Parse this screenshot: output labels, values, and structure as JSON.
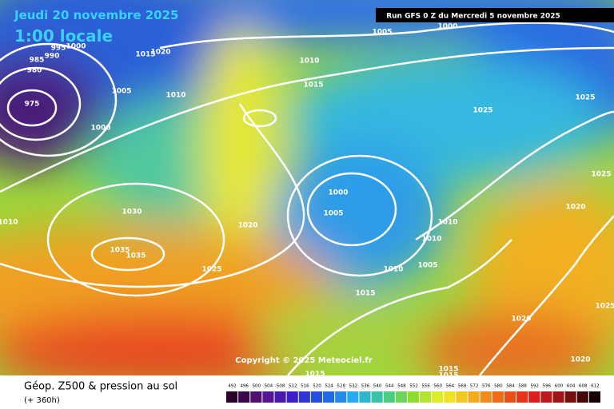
{
  "header": {
    "date": "Jeudi 20 novembre 2025",
    "time": "1:00 locale",
    "run": "Run GFS 0 Z du Mercredi 5 novembre 2025"
  },
  "isobars": {
    "labels": [
      1005,
      1000,
      1000,
      995,
      990,
      985,
      980,
      1020,
      1015,
      1010,
      1015,
      1005,
      1010,
      975,
      1025,
      1025,
      1000,
      1025,
      1000,
      1005,
      1030,
      1020,
      1010,
      1020,
      1010,
      1010,
      1035,
      1035,
      1025,
      1005,
      1010,
      1015,
      1025,
      1020,
      1020,
      1015,
      1015,
      1015
    ]
  },
  "copyright": "Copyright © 2025 Meteociel.fr",
  "footer": {
    "title": "Géop. Z500 & pression au sol",
    "lead": "(+ 360h)"
  },
  "legend": {
    "scale": [
      492,
      496,
      500,
      504,
      508,
      512,
      516,
      520,
      524,
      528,
      532,
      536,
      540,
      544,
      548,
      552,
      556,
      560,
      564,
      568,
      572,
      576,
      580,
      584,
      588,
      592,
      596,
      600,
      604,
      608,
      612
    ]
  }
}
